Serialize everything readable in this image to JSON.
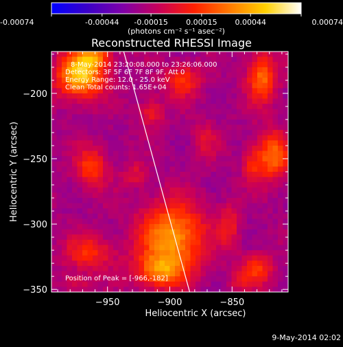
{
  "colorbar": {
    "ticks": [
      "-0.00074",
      "-0.00044",
      "-0.00015",
      "0.00015",
      "0.00044",
      "0.00074"
    ],
    "tick_values": [
      -0.00074,
      -0.00044,
      -0.00015,
      0.00015,
      0.00044,
      0.00074
    ],
    "range": [
      -0.00074,
      0.00074
    ],
    "units": "(photons cm⁻² s⁻¹ asec⁻²)",
    "colormap": [
      "#0000ff",
      "#3a00c8",
      "#7f00a8",
      "#c8005a",
      "#ff2000",
      "#ff7a00",
      "#ffd000",
      "#ffffff"
    ]
  },
  "chart_data": {
    "type": "heatmap",
    "title": "Reconstructed RHESSI Image",
    "xlabel": "Heliocentric X (arcsec)",
    "ylabel": "Heliocentric Y (arcsec)",
    "xlim": [
      -995,
      -805
    ],
    "ylim": [
      -352,
      -168
    ],
    "xticks": [
      -950,
      -900,
      -850
    ],
    "yticks": [
      -200,
      -250,
      -300,
      -350
    ],
    "grid": false,
    "annotations": [
      "8-May-2014 23:20:08.000 to 23:26:06.000",
      "Detectors: 3F 5F 6F 7F 8F 9F, Att 0",
      "Energy Range: 12.0 - 25.0 keV",
      "Clean   Total counts: 1.65E+04",
      "Position of Peak = [-966,-182]"
    ],
    "peak": {
      "x": -966,
      "y": -182
    },
    "limb_line": {
      "x": [
        -937,
        -884
      ],
      "y": [
        -168,
        -352
      ]
    },
    "sources": [
      {
        "x": -972,
        "y": -186,
        "sx": 13,
        "sy": 12,
        "amp": 1.0
      },
      {
        "x": -960,
        "y": -172,
        "sx": 9,
        "sy": 6,
        "amp": 0.55
      },
      {
        "x": -890,
        "y": -190,
        "sx": 10,
        "sy": 9,
        "amp": 0.45
      },
      {
        "x": -915,
        "y": -215,
        "sx": 7,
        "sy": 8,
        "amp": 0.35
      },
      {
        "x": -872,
        "y": -235,
        "sx": 7,
        "sy": 10,
        "amp": 0.25
      },
      {
        "x": -826,
        "y": -188,
        "sx": 8,
        "sy": 13,
        "amp": 0.65
      },
      {
        "x": -818,
        "y": -248,
        "sx": 10,
        "sy": 13,
        "amp": 0.65
      },
      {
        "x": -835,
        "y": -255,
        "sx": 5,
        "sy": 8,
        "amp": 0.3
      },
      {
        "x": -963,
        "y": -257,
        "sx": 9,
        "sy": 11,
        "amp": 0.5
      },
      {
        "x": -928,
        "y": -262,
        "sx": 7,
        "sy": 7,
        "amp": 0.25
      },
      {
        "x": -898,
        "y": -310,
        "sx": 18,
        "sy": 18,
        "amp": 0.82
      },
      {
        "x": -908,
        "y": -336,
        "sx": 14,
        "sy": 9,
        "amp": 0.6
      },
      {
        "x": -852,
        "y": -301,
        "sx": 6,
        "sy": 13,
        "amp": 0.3
      },
      {
        "x": -965,
        "y": -322,
        "sx": 14,
        "sy": 9,
        "amp": 0.42
      },
      {
        "x": -830,
        "y": -335,
        "sx": 10,
        "sy": 8,
        "amp": 0.45
      },
      {
        "x": -975,
        "y": -345,
        "sx": 9,
        "sy": 5,
        "amp": 0.25
      },
      {
        "x": -845,
        "y": -345,
        "sx": 6,
        "sy": 5,
        "amp": 0.2
      }
    ],
    "background_level": -0.28
  },
  "footer": {
    "date": "9-May-2014 02:02"
  }
}
